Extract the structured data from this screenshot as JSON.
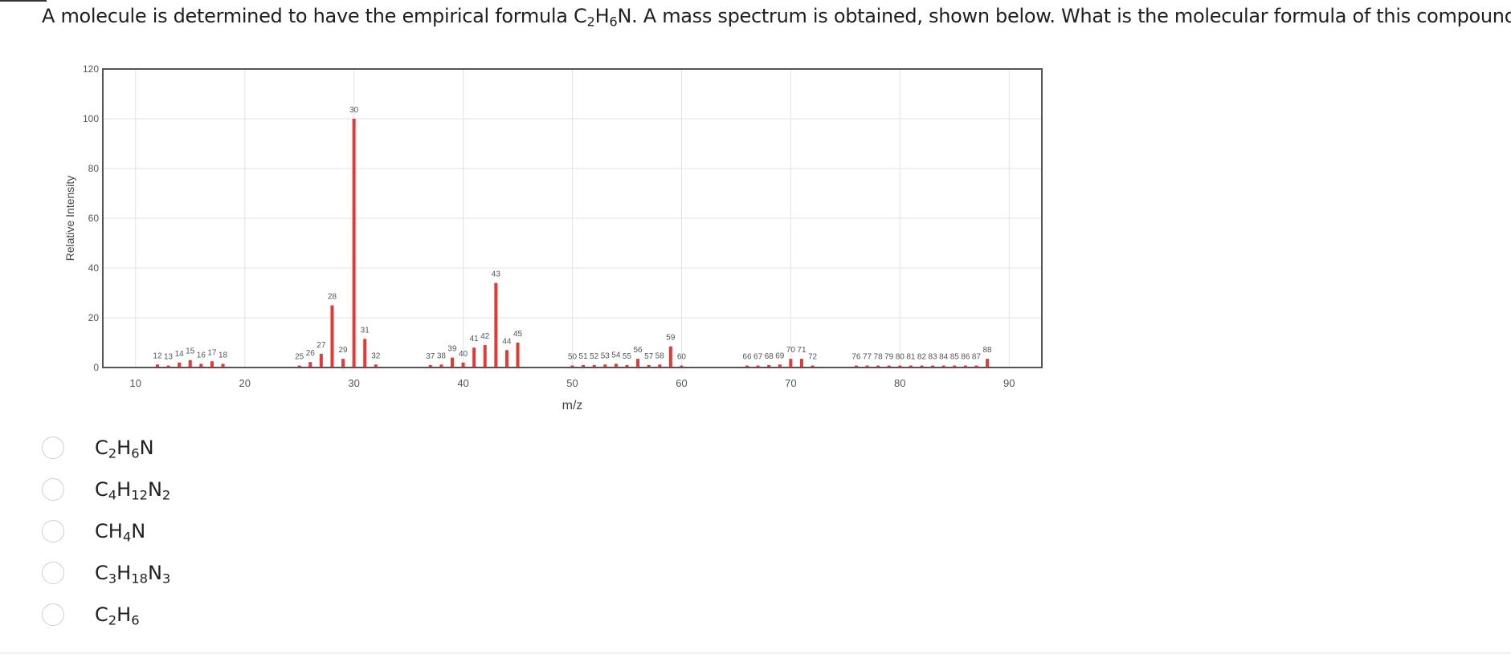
{
  "question": {
    "parts": [
      "A molecule is determined to have the empirical formula C",
      "2",
      "H",
      "6",
      "N. A mass spectrum is obtained, shown below. What is the molecular formula of this compound?"
    ]
  },
  "chart_data": {
    "type": "bar",
    "xlabel": "m/z",
    "ylabel": "Relative Intensity",
    "xlim": [
      7,
      93
    ],
    "ylim": [
      0,
      120
    ],
    "xticks": [
      10,
      20,
      30,
      40,
      50,
      60,
      70,
      80,
      90
    ],
    "yticks": [
      0,
      20,
      40,
      60,
      80,
      100,
      120
    ],
    "grid": true,
    "bar_color": "#e53935",
    "peaks": [
      {
        "mz": 12,
        "intensity": 1.2
      },
      {
        "mz": 13,
        "intensity": 0.8
      },
      {
        "mz": 14,
        "intensity": 2
      },
      {
        "mz": 15,
        "intensity": 3
      },
      {
        "mz": 16,
        "intensity": 1.5
      },
      {
        "mz": 17,
        "intensity": 2.5
      },
      {
        "mz": 18,
        "intensity": 1.5
      },
      {
        "mz": 25,
        "intensity": 0.8
      },
      {
        "mz": 26,
        "intensity": 2.2
      },
      {
        "mz": 27,
        "intensity": 5.5
      },
      {
        "mz": 28,
        "intensity": 25
      },
      {
        "mz": 29,
        "intensity": 3.5
      },
      {
        "mz": 30,
        "intensity": 100
      },
      {
        "mz": 31,
        "intensity": 11.5
      },
      {
        "mz": 32,
        "intensity": 1.2
      },
      {
        "mz": 37,
        "intensity": 1
      },
      {
        "mz": 38,
        "intensity": 1.2
      },
      {
        "mz": 39,
        "intensity": 4
      },
      {
        "mz": 40,
        "intensity": 2
      },
      {
        "mz": 41,
        "intensity": 8
      },
      {
        "mz": 42,
        "intensity": 9
      },
      {
        "mz": 43,
        "intensity": 34
      },
      {
        "mz": 44,
        "intensity": 7
      },
      {
        "mz": 45,
        "intensity": 10
      },
      {
        "mz": 50,
        "intensity": 0.8
      },
      {
        "mz": 51,
        "intensity": 1
      },
      {
        "mz": 52,
        "intensity": 1
      },
      {
        "mz": 53,
        "intensity": 1.2
      },
      {
        "mz": 54,
        "intensity": 1.5
      },
      {
        "mz": 55,
        "intensity": 1
      },
      {
        "mz": 56,
        "intensity": 3.5
      },
      {
        "mz": 57,
        "intensity": 1
      },
      {
        "mz": 58,
        "intensity": 1.2
      },
      {
        "mz": 59,
        "intensity": 8.5
      },
      {
        "mz": 60,
        "intensity": 0.8
      },
      {
        "mz": 66,
        "intensity": 0.8
      },
      {
        "mz": 67,
        "intensity": 0.8
      },
      {
        "mz": 68,
        "intensity": 1
      },
      {
        "mz": 69,
        "intensity": 1.2
      },
      {
        "mz": 70,
        "intensity": 3.5
      },
      {
        "mz": 71,
        "intensity": 3.5
      },
      {
        "mz": 72,
        "intensity": 0.8
      },
      {
        "mz": 76,
        "intensity": 0.8
      },
      {
        "mz": 77,
        "intensity": 0.8
      },
      {
        "mz": 78,
        "intensity": 0.8
      },
      {
        "mz": 79,
        "intensity": 0.8
      },
      {
        "mz": 80,
        "intensity": 0.8
      },
      {
        "mz": 81,
        "intensity": 0.8
      },
      {
        "mz": 82,
        "intensity": 0.8
      },
      {
        "mz": 83,
        "intensity": 0.8
      },
      {
        "mz": 84,
        "intensity": 0.8
      },
      {
        "mz": 85,
        "intensity": 0.8
      },
      {
        "mz": 86,
        "intensity": 0.8
      },
      {
        "mz": 87,
        "intensity": 0.8
      },
      {
        "mz": 88,
        "intensity": 3.5
      }
    ]
  },
  "options": [
    {
      "parts": [
        "C",
        "2",
        "H",
        "6",
        "N"
      ]
    },
    {
      "parts": [
        "C",
        "4",
        "H",
        "12",
        "N",
        "2"
      ]
    },
    {
      "parts": [
        "CH",
        "4",
        "N"
      ]
    },
    {
      "parts": [
        "C",
        "3",
        "H",
        "18",
        "N",
        "3"
      ]
    },
    {
      "parts": [
        "C",
        "2",
        "H",
        "6"
      ]
    }
  ]
}
